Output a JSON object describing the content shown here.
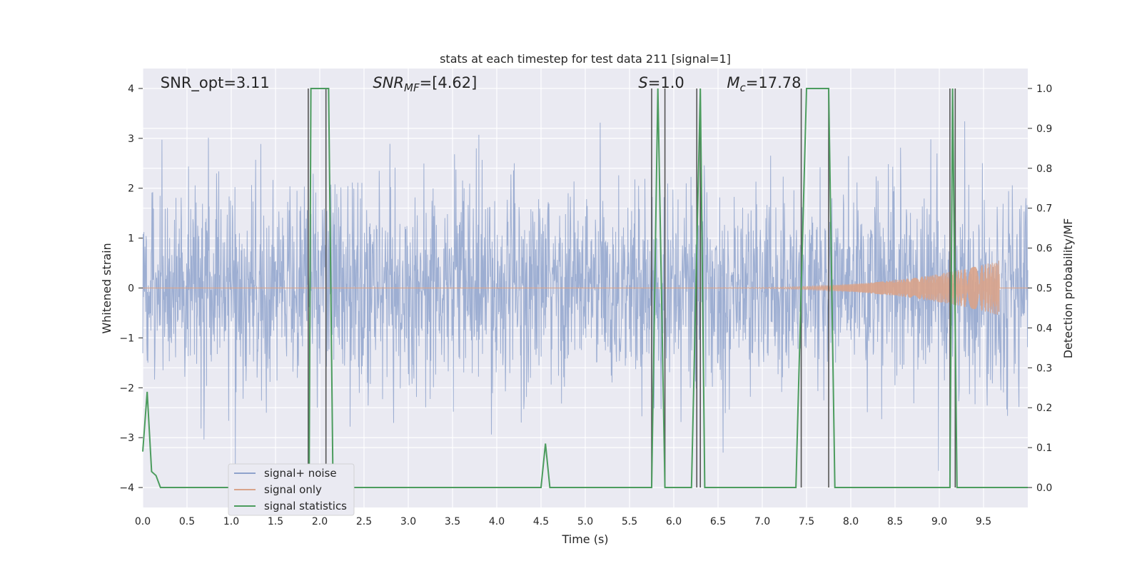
{
  "chart_data": {
    "type": "line",
    "title": "stats at each timestep for test data 211 [signal=1]",
    "xlabel": "Time (s)",
    "ylabel_left": "Whitened strain",
    "ylabel_right": "Detection probability/MF",
    "xlim": [
      0,
      10
    ],
    "ylim_left": [
      -4.4,
      4.4
    ],
    "ylim_right": [
      -0.05,
      1.05
    ],
    "x_ticks": [
      "0.0",
      "0.5",
      "1.0",
      "1.5",
      "2.0",
      "2.5",
      "3.0",
      "3.5",
      "4.0",
      "4.5",
      "5.0",
      "5.5",
      "6.0",
      "6.5",
      "7.0",
      "7.5",
      "8.0",
      "8.5",
      "9.0",
      "9.5"
    ],
    "x_tick_values": [
      0,
      0.5,
      1,
      1.5,
      2,
      2.5,
      3,
      3.5,
      4,
      4.5,
      5,
      5.5,
      6,
      6.5,
      7,
      7.5,
      8,
      8.5,
      9,
      9.5
    ],
    "y_left_ticks": [
      "4",
      "3",
      "2",
      "1",
      "0",
      "−1",
      "−2",
      "−3",
      "−4"
    ],
    "y_left_tick_values": [
      4,
      3,
      2,
      1,
      0,
      -1,
      -2,
      -3,
      -4
    ],
    "y_right_ticks": [
      "1.0",
      "0.9",
      "0.8",
      "0.7",
      "0.6",
      "0.5",
      "0.4",
      "0.3",
      "0.2",
      "0.1",
      "0.0"
    ],
    "y_right_tick_values": [
      1.0,
      0.9,
      0.8,
      0.7,
      0.6,
      0.5,
      0.4,
      0.3,
      0.2,
      0.1,
      0.0
    ],
    "grid": true,
    "legend_position": "lower-left",
    "annotations": [
      {
        "text": "SNR_opt=3.11",
        "x": 0.2
      },
      {
        "text": "SNR",
        "sub": "MF",
        "suffix": "=[4.62]",
        "italic": true,
        "x": 2.6
      },
      {
        "text": "S",
        "suffix": "=1.0",
        "italic": true,
        "x": 5.6
      },
      {
        "text": "M",
        "sub": "c",
        "suffix": "=17.78",
        "italic": true,
        "x": 6.6
      }
    ],
    "series": [
      {
        "name": "signal+ noise",
        "color": "#8fa3cc",
        "description_points": "noise band roughly between -2.5 and 2.5 with spikes up to 3.5 and down to -3.9",
        "noise_sigma": 1.0
      },
      {
        "name": "signal only",
        "color": "#d9a38a",
        "chirp_start_x": 6.0,
        "chirp_end_x": 9.68,
        "chirp_peak_amplitude": 0.55
      },
      {
        "name": "signal statistics",
        "color": "#4c9c5e",
        "axis": "right",
        "x": [
          0.0,
          0.05,
          0.1,
          0.15,
          0.2,
          0.25,
          1.88,
          1.9,
          2.1,
          2.15,
          4.5,
          4.55,
          4.6,
          4.65,
          5.75,
          5.82,
          5.9,
          5.95,
          6.0,
          6.2,
          6.3,
          6.35,
          6.42,
          7.38,
          7.5,
          7.75,
          7.82,
          9.12,
          9.15,
          9.2,
          9.24,
          10.0
        ],
        "y": [
          0.09,
          0.24,
          0.04,
          0.03,
          0.0,
          0.0,
          0.0,
          1.0,
          1.0,
          0.0,
          0.0,
          0.11,
          0.0,
          0.0,
          0.0,
          1.0,
          0.0,
          0.0,
          0.0,
          0.0,
          1.0,
          0.0,
          0.0,
          0.0,
          1.0,
          1.0,
          0.0,
          0.0,
          1.0,
          0.0,
          0.0,
          0.0
        ]
      }
    ],
    "vlines": {
      "color": "#555555",
      "x": [
        1.87,
        2.07,
        5.75,
        5.9,
        6.26,
        6.3,
        7.44,
        7.75,
        9.12,
        9.18
      ]
    }
  }
}
